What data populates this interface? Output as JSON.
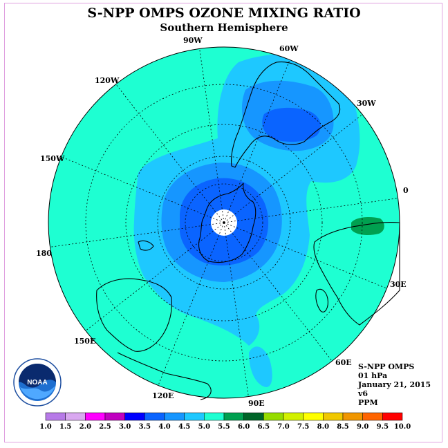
{
  "title": "S-NPP OMPS OZONE MIXING RATIO",
  "subtitle": "Southern Hemisphere",
  "longitude_labels": {
    "l90w": "90W",
    "l60w": "60W",
    "l120w": "120W",
    "l30w": "30W",
    "l150w": "150W",
    "l0": "0",
    "l180": "180",
    "l30e": "30E",
    "l150e": "150E",
    "l60e": "60E",
    "l120e": "120E",
    "l90e": "90E"
  },
  "info": {
    "instrument": "S-NPP OMPS",
    "level": "01 hPa",
    "date": "January 21, 2015",
    "version": "v6",
    "units": "PPM"
  },
  "colorbar": {
    "labels": [
      "1.0",
      "1.5",
      "2.0",
      "2.5",
      "3.0",
      "3.5",
      "4.0",
      "4.5",
      "5.0",
      "5.5",
      "6.0",
      "6.5",
      "7.0",
      "7.5",
      "8.0",
      "8.5",
      "9.0",
      "9.5",
      "10.0"
    ],
    "colors": [
      "#b77ae8",
      "#d9a8f0",
      "#ff00ff",
      "#c000c0",
      "#0000ff",
      "#0a64ff",
      "#1696ff",
      "#1ec8ff",
      "#1effd2",
      "#00a050",
      "#006428",
      "#96dc00",
      "#d2f000",
      "#ffff00",
      "#f0c800",
      "#f09600",
      "#ff6400",
      "#ff0000",
      "#8c5a3c"
    ]
  },
  "logo": {
    "text": "NOAA"
  },
  "map": {
    "colors": {
      "background": "#1effd2",
      "level_4_0": "#1ec8ff",
      "level_3_5": "#1696ff",
      "level_3_0": "#0a64ff",
      "level_5_5": "#00a050",
      "pole_hole": "#ffffff"
    }
  }
}
